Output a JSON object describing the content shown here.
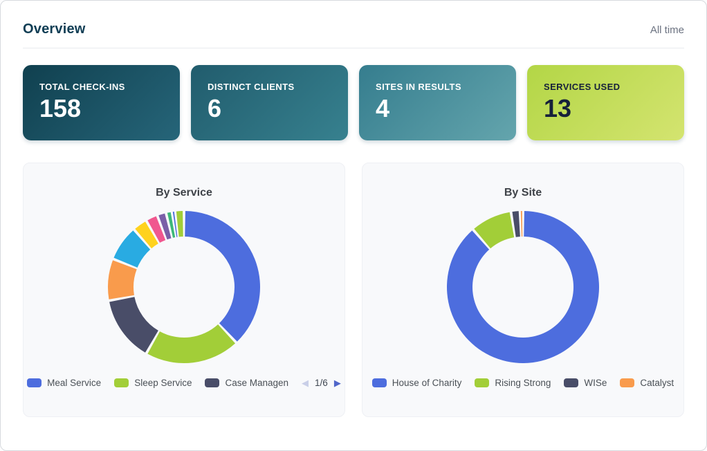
{
  "page": {
    "title": "Overview",
    "time_filter": "All time"
  },
  "stat_cards": [
    {
      "label": "TOTAL CHECK-INS",
      "value": "158",
      "gradient_from": "#10404f",
      "gradient_to": "#266579",
      "text_color": "#ffffff"
    },
    {
      "label": "DISTINCT CLIENTS",
      "value": "6",
      "gradient_from": "#215c6d",
      "gradient_to": "#37818f",
      "text_color": "#ffffff"
    },
    {
      "label": "SITES IN RESULTS",
      "value": "4",
      "gradient_from": "#357d8e",
      "gradient_to": "#64a5ad",
      "text_color": "#ffffff"
    },
    {
      "label": "SERVICES USED",
      "value": "13",
      "gradient_from": "#b3d646",
      "gradient_to": "#d4e470",
      "text_color": "#16203a"
    }
  ],
  "chart_data": [
    {
      "type": "pie",
      "variant": "donut",
      "title": "By Service",
      "total": 158,
      "legend_position": "bottom",
      "segments": [
        {
          "label": "Meal Service",
          "value": 60,
          "color": "#4d6dde"
        },
        {
          "label": "Sleep Service",
          "value": 32,
          "color": "#a2ce38"
        },
        {
          "label": "Case Management",
          "value": 22,
          "color": "#494d68"
        },
        {
          "label": null,
          "value": 14,
          "color": "#f99b4c"
        },
        {
          "label": null,
          "value": 12,
          "color": "#29abe2"
        },
        {
          "label": null,
          "value": 5,
          "color": "#ffd21e"
        },
        {
          "label": null,
          "value": 4,
          "color": "#f0578f"
        },
        {
          "label": null,
          "value": 3,
          "color": "#7a5fa8"
        },
        {
          "label": null,
          "value": 2,
          "color": "#3cb878"
        },
        {
          "label": null,
          "value": 1,
          "color": "#4d6dde"
        },
        {
          "label": null,
          "value": 3,
          "color": "#a2ce38"
        }
      ],
      "legend": {
        "items": [
          {
            "label": "Meal Service",
            "color": "#4d6dde"
          },
          {
            "label": "Sleep Service",
            "color": "#a2ce38"
          },
          {
            "label": "Case Managen",
            "color": "#494d68"
          }
        ],
        "pagination": {
          "page_label": "1/6",
          "prev_enabled": false,
          "next_enabled": true
        }
      }
    },
    {
      "type": "pie",
      "variant": "donut",
      "title": "By Site",
      "total": 158,
      "legend_position": "bottom",
      "segments": [
        {
          "label": "House of Charity",
          "value": 140,
          "color": "#4d6dde"
        },
        {
          "label": "Rising Strong",
          "value": 14,
          "color": "#a2ce38"
        },
        {
          "label": "WISe",
          "value": 3,
          "color": "#494d68"
        },
        {
          "label": "Catalyst",
          "value": 1,
          "color": "#f99b4c"
        }
      ],
      "legend": {
        "items": [
          {
            "label": "House of Charity",
            "color": "#4d6dde"
          },
          {
            "label": "Rising Strong",
            "color": "#a2ce38"
          },
          {
            "label": "WISe",
            "color": "#494d68"
          },
          {
            "label": "Catalyst",
            "color": "#f99b4c"
          }
        ]
      }
    }
  ]
}
